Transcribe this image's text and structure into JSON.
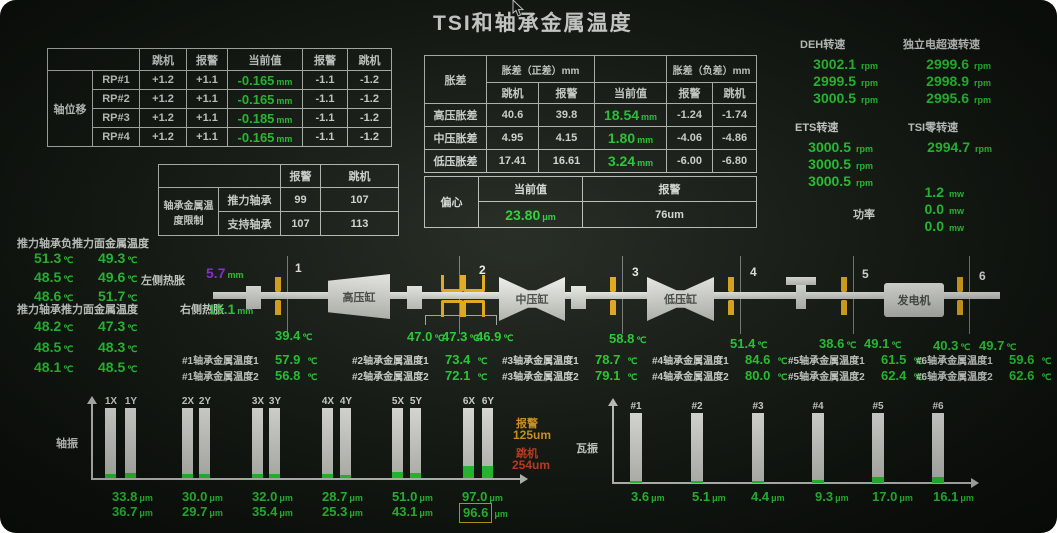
{
  "title": "TSI和轴承金属温度",
  "shaft_displacement": {
    "group_label": "轴位移",
    "trip_header": "跳机",
    "alarm_header": "报警",
    "current_header": "当前值",
    "rows": [
      {
        "name": "RP#1",
        "trip_pos": "+1.2",
        "alarm_pos": "+1.1",
        "value": "-0.165",
        "unit": "mm",
        "alarm_neg": "-1.1",
        "trip_neg": "-1.2"
      },
      {
        "name": "RP#2",
        "trip_pos": "+1.2",
        "alarm_pos": "+1.1",
        "value": "-0.165",
        "unit": "mm",
        "alarm_neg": "-1.1",
        "trip_neg": "-1.2"
      },
      {
        "name": "RP#3",
        "trip_pos": "+1.2",
        "alarm_pos": "+1.1",
        "value": "-0.185",
        "unit": "mm",
        "alarm_neg": "-1.1",
        "trip_neg": "-1.2"
      },
      {
        "name": "RP#4",
        "trip_pos": "+1.2",
        "alarm_pos": "+1.1",
        "value": "-0.165",
        "unit": "mm",
        "alarm_neg": "-1.1",
        "trip_neg": "-1.2"
      }
    ]
  },
  "temp_limit": {
    "group_label": "轴承金属温度限制",
    "alarm_header": "报警",
    "trip_header": "跳机",
    "rows": [
      {
        "name": "推力轴承",
        "alarm": "99",
        "trip": "107"
      },
      {
        "name": "支持轴承",
        "alarm": "107",
        "trip": "113"
      }
    ]
  },
  "expansion": {
    "group_label": "胀差",
    "pos_header": "胀差（正差）mm",
    "neg_header": "胀差（负差）mm",
    "trip_header": "跳机",
    "alarm_header": "报警",
    "current_header": "当前值",
    "rows": [
      {
        "name": "高压胀差",
        "trip_pos": "40.6",
        "alarm_pos": "39.8",
        "value": "18.54",
        "unit": "mm",
        "alarm_neg": "-1.24",
        "trip_neg": "-1.74"
      },
      {
        "name": "中压胀差",
        "trip_pos": "4.95",
        "alarm_pos": "4.15",
        "value": "1.80",
        "unit": "mm",
        "alarm_neg": "-4.06",
        "trip_neg": "-4.86"
      },
      {
        "name": "低压胀差",
        "trip_pos": "17.41",
        "alarm_pos": "16.61",
        "value": "3.24",
        "unit": "mm",
        "alarm_neg": "-6.00",
        "trip_neg": "-6.80"
      }
    ]
  },
  "eccentricity": {
    "group_label": "偏心",
    "current_header": "当前值",
    "alarm_header": "报警",
    "value": "23.80",
    "unit": "μm",
    "alarm_value": "76um"
  },
  "speeds": {
    "deh": {
      "label": "DEH转速",
      "unit": "rpm",
      "values": [
        "3002.1",
        "2999.5",
        "3000.5"
      ]
    },
    "overspeed": {
      "label": "独立电超速转速",
      "unit": "rpm",
      "values": [
        "2999.6",
        "2998.9",
        "2995.6"
      ]
    },
    "ets": {
      "label": "ETS转速",
      "unit": "rpm",
      "values": [
        "3000.5",
        "3000.5",
        "3000.5"
      ]
    },
    "tsi_zero": {
      "label": "TSI零转速",
      "unit": "rpm",
      "values": [
        "2994.7"
      ]
    },
    "power": {
      "label": "功率",
      "unit": "mw",
      "values": [
        "1.2",
        "0.0",
        "0.0"
      ]
    }
  },
  "thrust_neg": {
    "label": "推力轴承负推力面金属温度",
    "unit": "℃",
    "rows": [
      [
        "51.3",
        "49.3"
      ],
      [
        "48.5",
        "49.6"
      ],
      [
        "48.6",
        "51.7"
      ]
    ]
  },
  "thrust_pos": {
    "label": "推力轴承推力面金属温度",
    "unit": "℃",
    "rows": [
      [
        "48.2",
        "47.3"
      ],
      [
        "48.5",
        "48.3"
      ],
      [
        "48.1",
        "48.5"
      ]
    ]
  },
  "expansion_left": {
    "label": "左侧热胀",
    "value": "5.7",
    "unit": "mm"
  },
  "expansion_right": {
    "label": "右侧热胀",
    "value": "15.1",
    "unit": "mm"
  },
  "diagram": {
    "hp_label": "高压缸",
    "ip_label": "中压缸",
    "lp_label": "低压缸",
    "gen_label": "发电机",
    "bearing_numbers": [
      "1",
      "2",
      "3",
      "4",
      "5",
      "6"
    ],
    "temp_unit": "℃",
    "temps": {
      "b1": [
        "39.4"
      ],
      "b2": [
        "47.0",
        "47.3",
        "46.9"
      ],
      "b3": [
        "58.8"
      ],
      "b4": [
        "51.4"
      ],
      "b5": [
        "38.6",
        "49.1"
      ],
      "b6": [
        "40.3",
        "49.7"
      ]
    }
  },
  "bearing_metal": [
    {
      "label1": "#1轴承金属温度1",
      "value1": "57.9",
      "label2": "#1轴承金属温度2",
      "value2": "56.8",
      "unit": "℃"
    },
    {
      "label1": "#2轴承金属温度1",
      "value1": "73.4",
      "label2": "#2轴承金属温度2",
      "value2": "72.1",
      "unit": "℃"
    },
    {
      "label1": "#3轴承金属温度1",
      "value1": "78.7",
      "label2": "#3轴承金属温度2",
      "value2": "79.1",
      "unit": "℃"
    },
    {
      "label1": "#4轴承金属温度1",
      "value1": "84.6",
      "label2": "#4轴承金属温度2",
      "value2": "80.0",
      "unit": "℃"
    },
    {
      "label1": "#5轴承金属温度1",
      "value1": "61.5",
      "label2": "#5轴承金属温度2",
      "value2": "62.4",
      "unit": "℃"
    },
    {
      "label1": "#6轴承金属温度1",
      "value1": "59.6",
      "label2": "#6轴承金属温度2",
      "value2": "62.6",
      "unit": "℃"
    }
  ],
  "shaft_vibration": {
    "axis_label": "轴振",
    "unit": "μm",
    "alarm": {
      "label": "报警",
      "value": "125um"
    },
    "trip": {
      "label": "跳机",
      "value": "254um"
    },
    "pairs": [
      {
        "label_x": "1X",
        "label_y": "1Y",
        "value_x": "33.8",
        "value_y": "36.7"
      },
      {
        "label_x": "2X",
        "label_y": "2Y",
        "value_x": "30.0",
        "value_y": "29.7"
      },
      {
        "label_x": "3X",
        "label_y": "3Y",
        "value_x": "32.0",
        "value_y": "35.4"
      },
      {
        "label_x": "4X",
        "label_y": "4Y",
        "value_x": "28.7",
        "value_y": "25.3"
      },
      {
        "label_x": "5X",
        "label_y": "5Y",
        "value_x": "51.0",
        "value_y": "43.1"
      },
      {
        "label_x": "6X",
        "label_y": "6Y",
        "value_x": "97.0",
        "value_y": "96.6"
      }
    ]
  },
  "pad_vibration": {
    "axis_label": "瓦振",
    "unit": "μm",
    "bars": [
      {
        "label": "#1",
        "value": "3.6"
      },
      {
        "label": "#2",
        "value": "5.1"
      },
      {
        "label": "#3",
        "value": "4.4"
      },
      {
        "label": "#4",
        "value": "9.3"
      },
      {
        "label": "#5",
        "value": "17.0"
      },
      {
        "label": "#6",
        "value": "16.1"
      }
    ]
  },
  "chart_data": [
    {
      "type": "bar",
      "title": "轴振",
      "unit": "μm",
      "categories": [
        "1X",
        "1Y",
        "2X",
        "2Y",
        "3X",
        "3Y",
        "4X",
        "4Y",
        "5X",
        "5Y",
        "6X",
        "6Y"
      ],
      "values": [
        33.8,
        36.7,
        30.0,
        29.7,
        32.0,
        35.4,
        28.7,
        25.3,
        51.0,
        43.1,
        97.0,
        96.6
      ],
      "alarm_limit_um": 125,
      "trip_limit_um": 254
    },
    {
      "type": "bar",
      "title": "瓦振",
      "unit": "μm",
      "categories": [
        "#1",
        "#2",
        "#3",
        "#4",
        "#5",
        "#6"
      ],
      "values": [
        3.6,
        5.1,
        4.4,
        9.3,
        17.0,
        16.1
      ]
    }
  ]
}
